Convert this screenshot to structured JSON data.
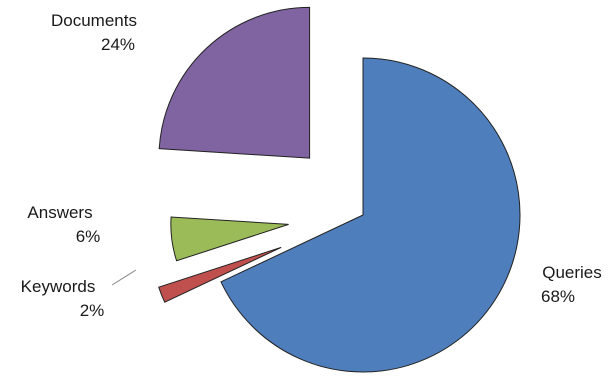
{
  "chart_data": {
    "type": "pie",
    "exploded": true,
    "slices": [
      {
        "name": "Queries",
        "pct_label": "68%",
        "value": 68,
        "color": "#4f7ebc"
      },
      {
        "name": "Keywords",
        "pct_label": "2%",
        "value": 2,
        "color": "#c0504d"
      },
      {
        "name": "Answers",
        "pct_label": "6%",
        "value": 6,
        "color": "#9bbb59"
      },
      {
        "name": "Documents",
        "pct_label": "24%",
        "value": 24,
        "color": "#8064a2"
      }
    ]
  }
}
